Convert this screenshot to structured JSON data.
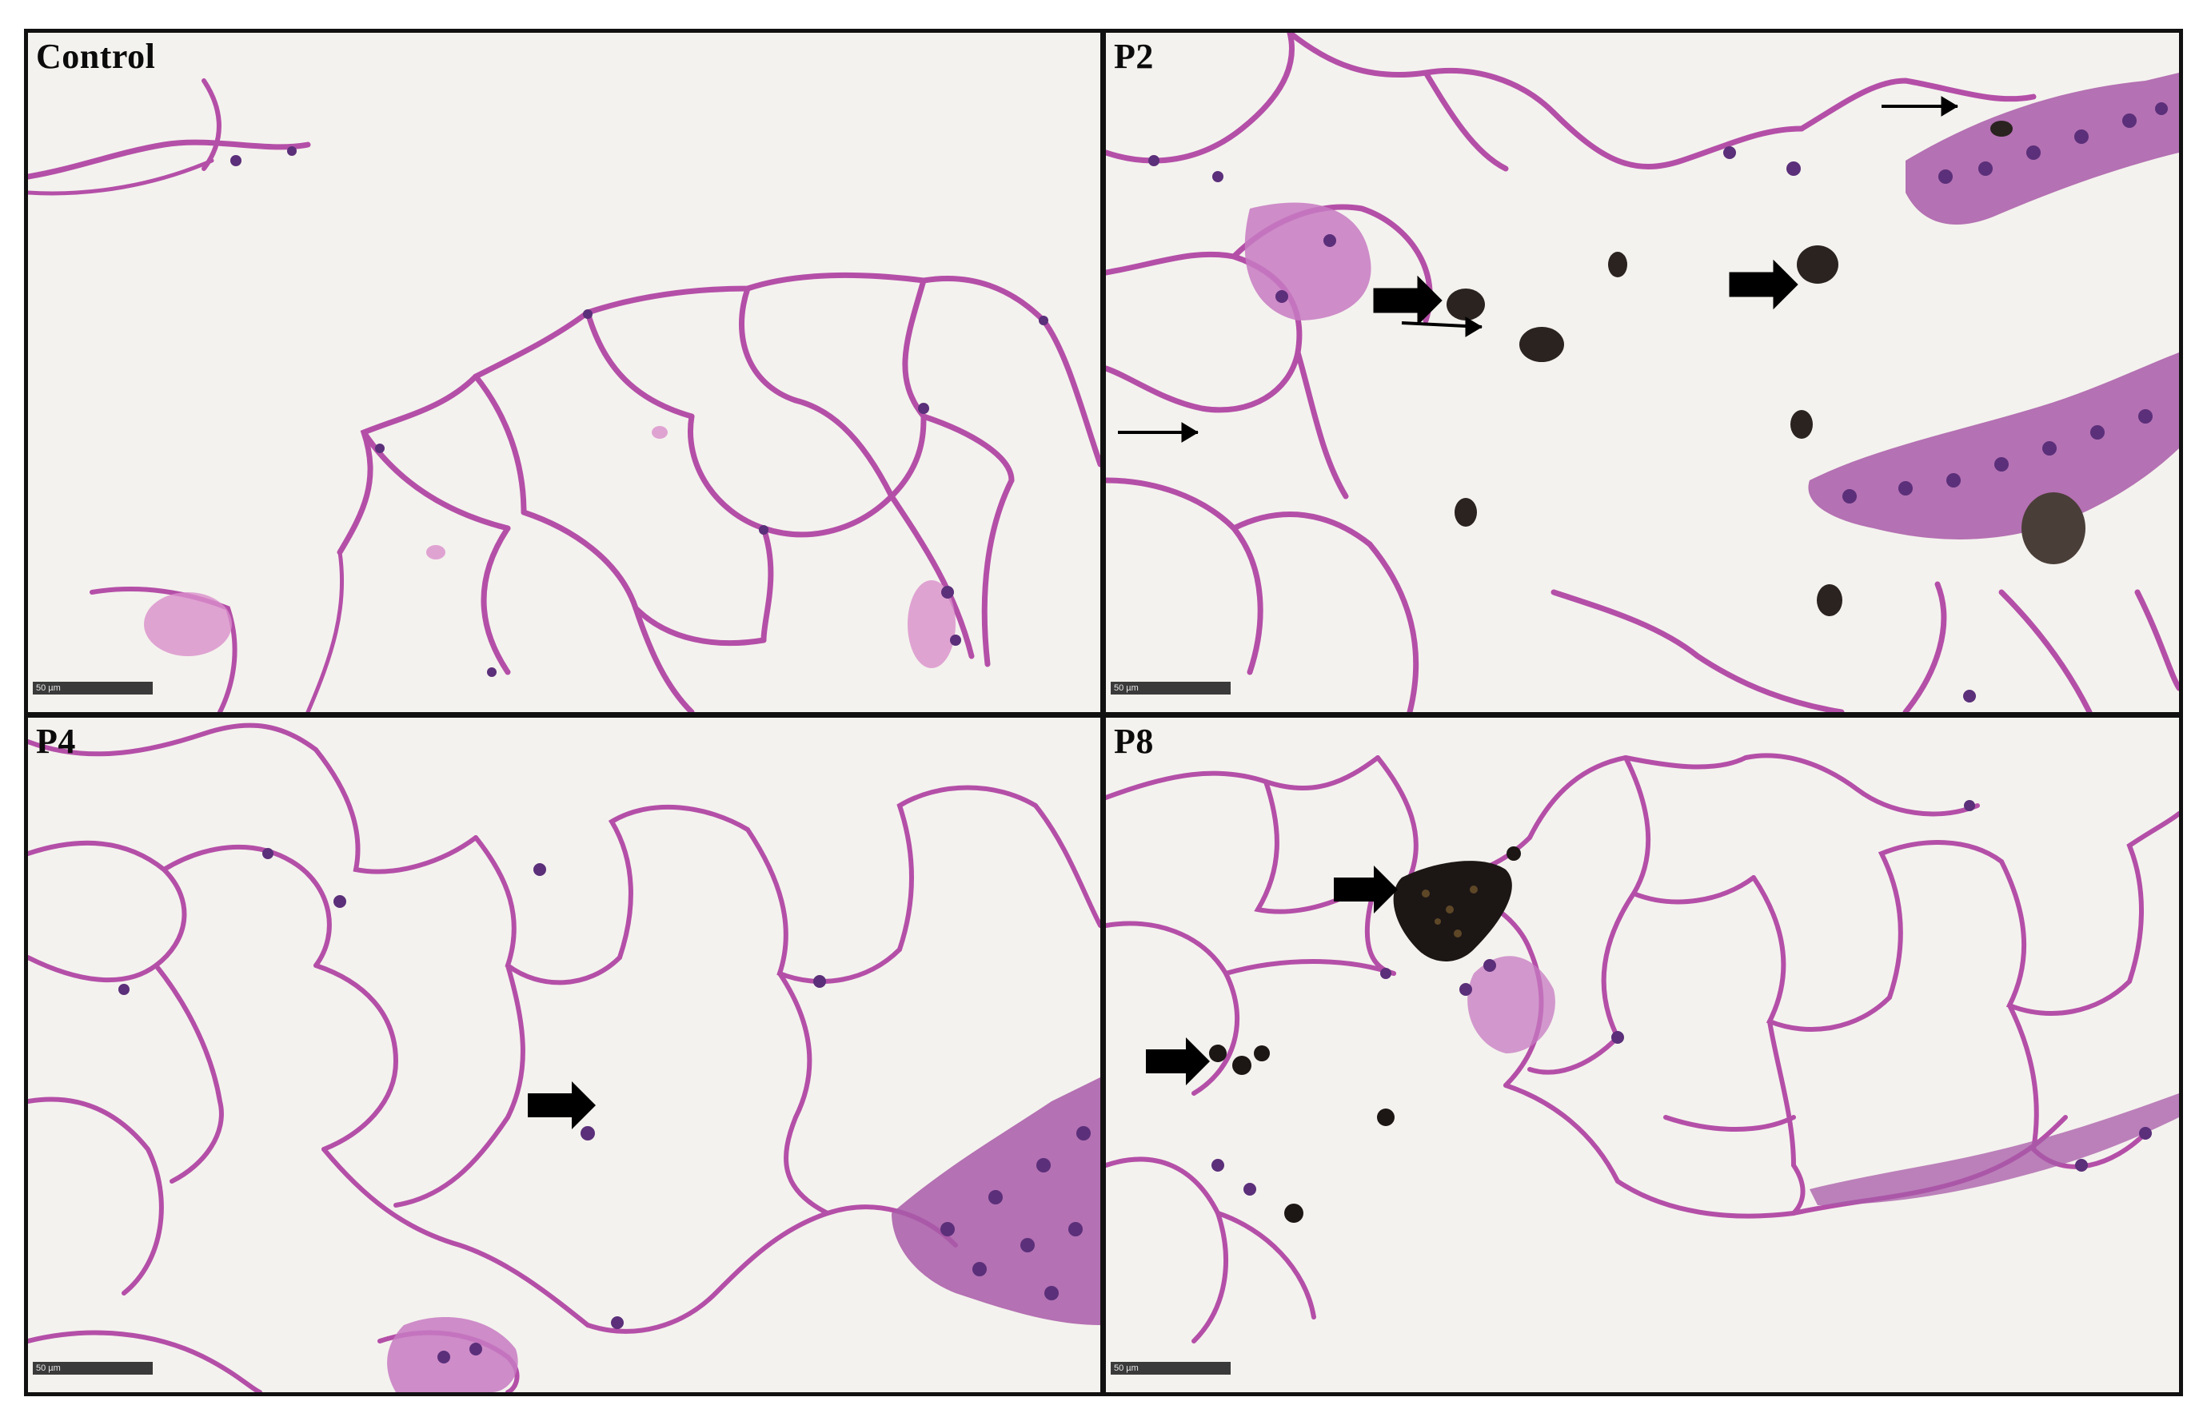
{
  "figure": {
    "panels": [
      {
        "id": "control",
        "label": "Control",
        "scale_bar": "50 µm"
      },
      {
        "id": "p2",
        "label": "P2",
        "scale_bar": "50 µm"
      },
      {
        "id": "p4",
        "label": "P4",
        "scale_bar": "50 µm"
      },
      {
        "id": "p8",
        "label": "P8",
        "scale_bar": "50 µm"
      }
    ]
  },
  "colors": {
    "background": "#f4f2ee",
    "septa": "#b44fa8",
    "septa_light": "#d98fcb",
    "nuclei": "#5b2f7a",
    "particles": "#2a2320",
    "arrow": "#000000"
  }
}
